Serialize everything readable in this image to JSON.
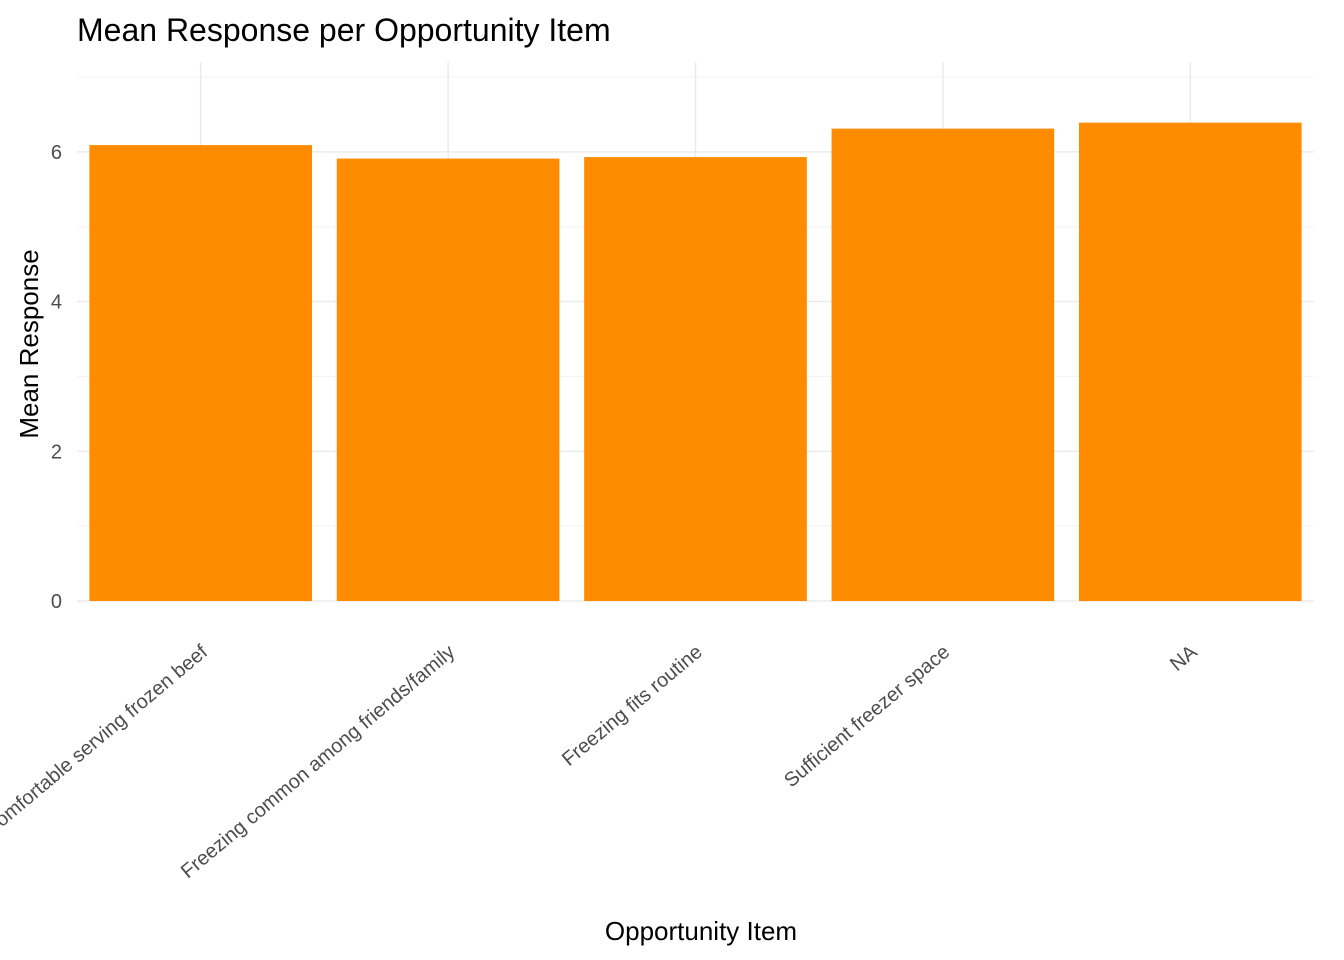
{
  "chart_data": {
    "type": "bar",
    "title": "Mean Response per Opportunity Item",
    "xlabel": "Opportunity Item",
    "ylabel": "Mean Response",
    "categories": [
      "Comfortable serving frozen beef",
      "Freezing common among friends/family",
      "Freezing fits routine",
      "Sufficient freezer space",
      "NA"
    ],
    "values": [
      6.09,
      5.91,
      5.93,
      6.31,
      6.39
    ],
    "ylim": [
      0,
      7.2
    ],
    "yticks": [
      0,
      2,
      4,
      6
    ],
    "grid": true,
    "legend": "none",
    "bar_color": "#FF8C00"
  }
}
